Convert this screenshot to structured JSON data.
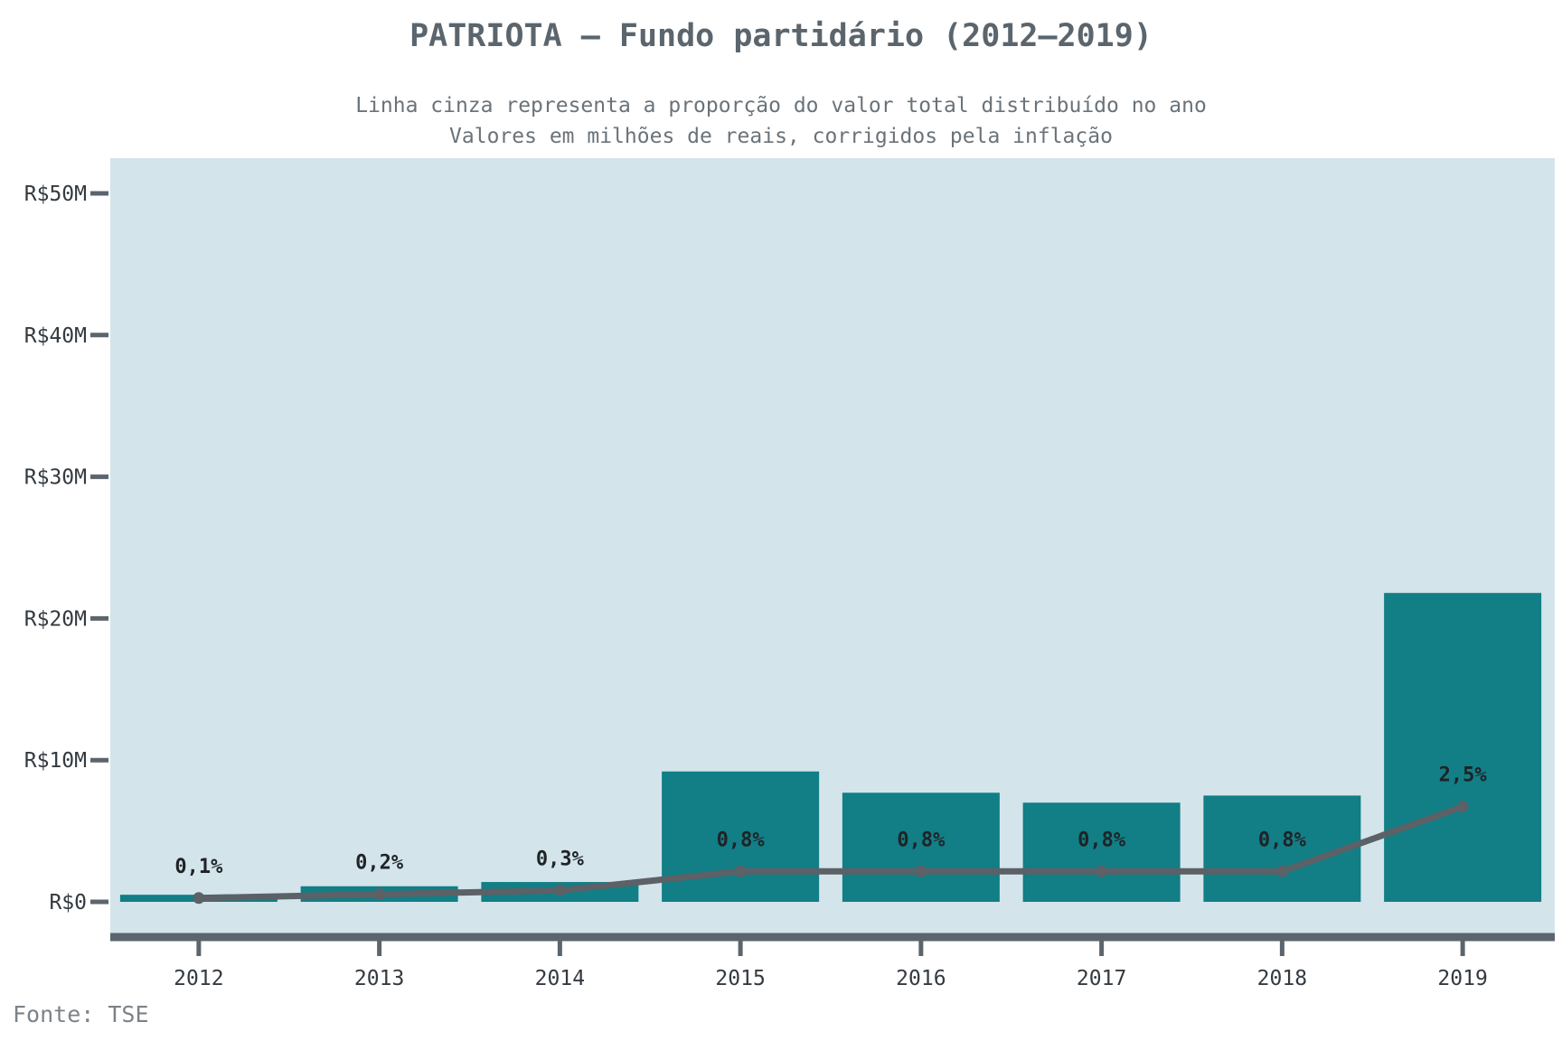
{
  "chart_data": {
    "type": "bar",
    "title": "PATRIOTA – Fundo partidário (2012–2019)",
    "subtitle_lines": [
      "Linha cinza representa a proporção do valor total distribuído no ano",
      "Valores em milhões de reais, corrigidos pela inflação"
    ],
    "source": "Fonte: TSE",
    "xlabel": "",
    "ylabel": "",
    "categories": [
      "2012",
      "2013",
      "2014",
      "2015",
      "2016",
      "2017",
      "2018",
      "2019"
    ],
    "series": [
      {
        "kind": "bar",
        "values": [
          0.5,
          1.1,
          1.4,
          9.2,
          7.7,
          7.0,
          7.5,
          21.8
        ]
      },
      {
        "kind": "line",
        "values": [
          0.1,
          0.2,
          0.3,
          0.8,
          0.8,
          0.8,
          0.8,
          2.5
        ],
        "labels": [
          "0,1%",
          "0,2%",
          "0,3%",
          "0,8%",
          "0,8%",
          "0,8%",
          "0,8%",
          "2,5%"
        ]
      }
    ],
    "ylim": [
      0,
      52
    ],
    "yticks": [
      0,
      10,
      20,
      30,
      40,
      50
    ],
    "ytick_labels": [
      "R$0",
      "R$10M",
      "R$20M",
      "R$30M",
      "R$40M",
      "R$50M"
    ],
    "line_pct_max": 7,
    "grid": false,
    "colors": {
      "panel": "#d3e4eb",
      "bar": "#127e86",
      "line": "#5b6166",
      "axis": "#5b656d",
      "title": "#5b656d"
    }
  }
}
